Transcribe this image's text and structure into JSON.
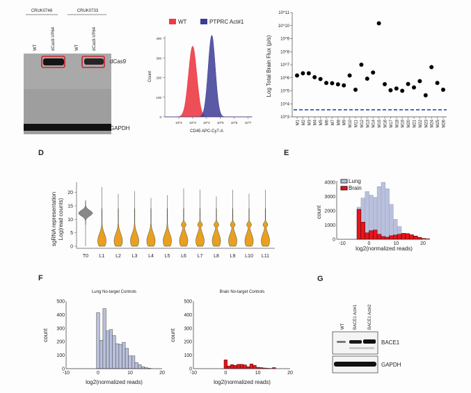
{
  "panels": {
    "A": {
      "groups": [
        "CRUK0748",
        "CRUK0733"
      ],
      "lanes": [
        "WT",
        "dCas9-VP64",
        "WT",
        "dCas9-VP64"
      ],
      "bands": [
        "dCas9",
        "GAPDH"
      ],
      "highlight_color": "#d0202a"
    },
    "D": {
      "letter": "D"
    },
    "E": {
      "letter": "E"
    },
    "F": {
      "letter": "F"
    },
    "G": {
      "letter": "G",
      "lanes": [
        "WT",
        "BACE1 Act#1",
        "BACE1 Act#2"
      ],
      "bands": [
        "BACE1",
        "GAPDH"
      ]
    }
  },
  "chart_data": [
    {
      "id": "B",
      "type": "area",
      "xlabel": "CD45 APC-Cy7-A",
      "ylabel": "Count",
      "x_scale": "log",
      "x_ticks": [
        "10^2",
        "10^3",
        "10^4",
        "10^5",
        "10^6",
        "10^7"
      ],
      "y_ticks": [
        0,
        100,
        200,
        300,
        400
      ],
      "ylim": [
        0,
        430
      ],
      "legend": "top",
      "series": [
        {
          "name": "WT",
          "color": "#ec3b45",
          "peak_x": 1000,
          "peak_count": 360
        },
        {
          "name": "PTPRC Act#1",
          "color": "#3c3c96",
          "peak_x": 24000,
          "peak_count": 415
        }
      ]
    },
    {
      "id": "C",
      "type": "scatter",
      "ylabel": "Log Total Brain Flux (ρ/s)",
      "y_scale": "log",
      "y_ticks": [
        "10^3",
        "10^4",
        "10^5",
        "10^6",
        "10^7",
        "10^8",
        "10^9",
        "10^10",
        "10^11"
      ],
      "ylim": [
        1000,
        100000000000
      ],
      "categories": [
        "M1",
        "M2",
        "M3",
        "M4",
        "M5",
        "M6",
        "M7",
        "M8",
        "M9",
        "M10",
        "M11",
        "M12",
        "M13",
        "M14",
        "M15",
        "M16",
        "M17",
        "M18",
        "M19",
        "M20",
        "M21",
        "M22",
        "M23",
        "M24",
        "M25",
        "M26"
      ],
      "values": [
        1500000,
        2200000,
        2200000,
        1100000,
        800000,
        400000,
        380000,
        310000,
        260000,
        1500000,
        120000,
        10000000,
        850000,
        2500000,
        15000000000,
        320000,
        110000,
        150000,
        100000,
        330000,
        180000,
        550000,
        45000,
        6500000,
        400000,
        120000
      ],
      "threshold": 3500,
      "threshold_color": "#2a4aa8"
    },
    {
      "id": "D",
      "type": "violin",
      "ylabel": [
        "sgRNA representation",
        "Log(read counts)"
      ],
      "y_ticks": [
        0,
        5,
        10,
        15,
        20
      ],
      "categories": [
        "T0",
        "L1",
        "L2",
        "L3",
        "L4",
        "L5",
        "L6",
        "L7",
        "L8",
        "L9",
        "L10",
        "L11"
      ],
      "max_values": [
        17,
        22,
        19.5,
        20.5,
        18,
        19,
        21.5,
        21,
        18.5,
        21,
        19.5,
        21
      ],
      "colors": {
        "T0": "#888888",
        "L": "#e8a020"
      }
    },
    {
      "id": "E",
      "type": "bar",
      "xlabel": "log2(normalized reads)",
      "ylabel": "count",
      "x_ticks": [
        -10,
        0,
        10,
        20
      ],
      "y_ticks": [
        0,
        1000,
        2000,
        3000,
        4000
      ],
      "xlim": [
        -12,
        20
      ],
      "ylim": [
        0,
        4100
      ],
      "legend": "top-left",
      "bin_start": -4.5,
      "bin_width": 1.5,
      "series": [
        {
          "name": "Lung",
          "color": "#b8c0dc",
          "values": [
            2250,
            2900,
            3350,
            3100,
            2950,
            3700,
            4000,
            3550,
            2450,
            1400,
            900,
            350,
            150,
            50
          ]
        },
        {
          "name": "Brain",
          "color": "#e8141c",
          "values": [
            2100,
            1200,
            450,
            600,
            650,
            350,
            200,
            150,
            250,
            300,
            350,
            420,
            400,
            320,
            230,
            130,
            60,
            30
          ]
        }
      ]
    },
    {
      "id": "F-lung",
      "type": "bar",
      "title": "Lung No-target Controls",
      "xlabel": "log2(normalized reads)",
      "ylabel": "count",
      "x_ticks": [
        -10,
        0,
        10,
        20
      ],
      "y_ticks": [
        0,
        100,
        200,
        300,
        400,
        500
      ],
      "xlim": [
        -10,
        20
      ],
      "ylim": [
        0,
        500
      ],
      "bin_start": -0.5,
      "bin_width": 1,
      "color": "#b8c0dc",
      "values": [
        415,
        210,
        445,
        280,
        290,
        245,
        185,
        180,
        195,
        150,
        95,
        95,
        45,
        30,
        15,
        8,
        3
      ]
    },
    {
      "id": "F-brain",
      "type": "bar",
      "title": "Brain No-target Controls",
      "xlabel": "log2(normalized reads)",
      "ylabel": "count",
      "x_ticks": [
        -10,
        0,
        10,
        20
      ],
      "y_ticks": [
        0,
        100,
        200,
        300,
        400,
        500
      ],
      "xlim": [
        -10,
        20
      ],
      "ylim": [
        0,
        500
      ],
      "bin_start": -0.5,
      "bin_width": 1,
      "color": "#e8141c",
      "values": [
        65,
        20,
        30,
        25,
        32,
        32,
        28,
        15,
        35,
        25,
        10,
        8,
        5,
        3,
        2,
        8
      ]
    }
  ]
}
